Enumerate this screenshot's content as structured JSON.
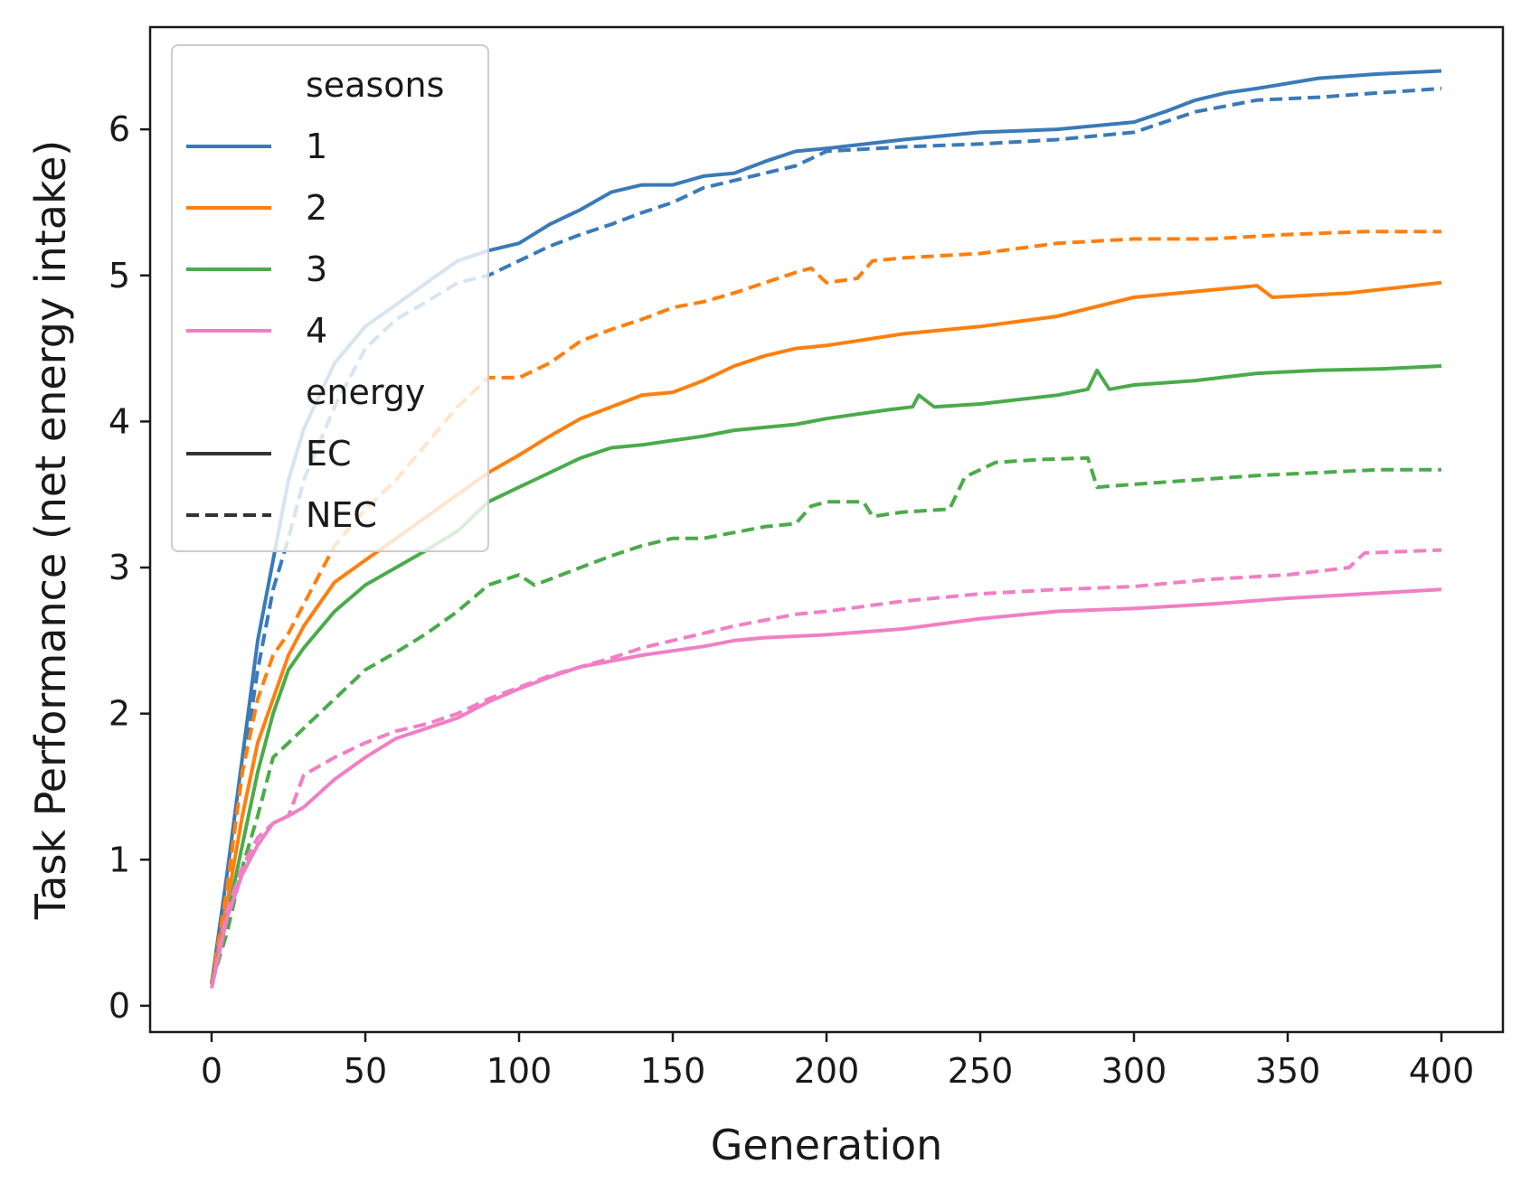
{
  "chart_data": {
    "type": "line",
    "title": "",
    "xlabel": "Generation",
    "ylabel": "Task Performance (net energy intake)",
    "xlim": [
      -20,
      420
    ],
    "ylim": [
      -0.18,
      6.7
    ],
    "xticks": [
      0,
      50,
      100,
      150,
      200,
      250,
      300,
      350,
      400
    ],
    "yticks": [
      0,
      1,
      2,
      3,
      4,
      5,
      6
    ],
    "grid": false,
    "legend": {
      "placement": "upper-left",
      "hue_title": "seasons",
      "style_title": "energy",
      "hue_entries": [
        {
          "label": "1",
          "color": "#3a7ab8"
        },
        {
          "label": "2",
          "color": "#ff7f0e"
        },
        {
          "label": "3",
          "color": "#4aab4a"
        },
        {
          "label": "4",
          "color": "#f07fc4"
        }
      ],
      "style_entries": [
        {
          "label": "EC",
          "dash": "solid"
        },
        {
          "label": "NEC",
          "dash": "dashed"
        }
      ]
    },
    "series": [
      {
        "seasons": "1",
        "energy": "EC",
        "color": "#3a7ab8",
        "dash": "solid",
        "points": [
          [
            0,
            0.15
          ],
          [
            5,
            0.9
          ],
          [
            10,
            1.7
          ],
          [
            15,
            2.5
          ],
          [
            20,
            3.05
          ],
          [
            25,
            3.6
          ],
          [
            30,
            3.95
          ],
          [
            40,
            4.4
          ],
          [
            50,
            4.65
          ],
          [
            60,
            4.8
          ],
          [
            70,
            4.95
          ],
          [
            80,
            5.1
          ],
          [
            90,
            5.17
          ],
          [
            100,
            5.22
          ],
          [
            110,
            5.35
          ],
          [
            120,
            5.45
          ],
          [
            130,
            5.57
          ],
          [
            140,
            5.62
          ],
          [
            150,
            5.62
          ],
          [
            160,
            5.68
          ],
          [
            170,
            5.7
          ],
          [
            180,
            5.78
          ],
          [
            190,
            5.85
          ],
          [
            200,
            5.87
          ],
          [
            225,
            5.93
          ],
          [
            250,
            5.98
          ],
          [
            275,
            6.0
          ],
          [
            300,
            6.05
          ],
          [
            310,
            6.12
          ],
          [
            320,
            6.2
          ],
          [
            330,
            6.25
          ],
          [
            340,
            6.28
          ],
          [
            360,
            6.35
          ],
          [
            380,
            6.38
          ],
          [
            400,
            6.4
          ]
        ]
      },
      {
        "seasons": "1",
        "energy": "NEC",
        "color": "#3a7ab8",
        "dash": "dashed",
        "points": [
          [
            0,
            0.15
          ],
          [
            5,
            0.85
          ],
          [
            10,
            1.6
          ],
          [
            15,
            2.3
          ],
          [
            20,
            2.85
          ],
          [
            25,
            3.2
          ],
          [
            30,
            3.6
          ],
          [
            40,
            4.1
          ],
          [
            50,
            4.5
          ],
          [
            60,
            4.7
          ],
          [
            70,
            4.82
          ],
          [
            80,
            4.95
          ],
          [
            90,
            5.0
          ],
          [
            100,
            5.1
          ],
          [
            110,
            5.2
          ],
          [
            120,
            5.28
          ],
          [
            130,
            5.35
          ],
          [
            140,
            5.43
          ],
          [
            150,
            5.5
          ],
          [
            160,
            5.6
          ],
          [
            170,
            5.65
          ],
          [
            180,
            5.7
          ],
          [
            190,
            5.75
          ],
          [
            200,
            5.85
          ],
          [
            225,
            5.88
          ],
          [
            250,
            5.9
          ],
          [
            275,
            5.93
          ],
          [
            300,
            5.98
          ],
          [
            320,
            6.12
          ],
          [
            340,
            6.2
          ],
          [
            360,
            6.22
          ],
          [
            380,
            6.25
          ],
          [
            400,
            6.28
          ]
        ]
      },
      {
        "seasons": "2",
        "energy": "EC",
        "color": "#ff7f0e",
        "dash": "solid",
        "points": [
          [
            0,
            0.15
          ],
          [
            5,
            0.7
          ],
          [
            10,
            1.3
          ],
          [
            15,
            1.8
          ],
          [
            20,
            2.1
          ],
          [
            25,
            2.4
          ],
          [
            30,
            2.6
          ],
          [
            40,
            2.9
          ],
          [
            50,
            3.05
          ],
          [
            60,
            3.2
          ],
          [
            70,
            3.35
          ],
          [
            80,
            3.5
          ],
          [
            90,
            3.65
          ],
          [
            100,
            3.77
          ],
          [
            110,
            3.9
          ],
          [
            120,
            4.02
          ],
          [
            130,
            4.1
          ],
          [
            140,
            4.18
          ],
          [
            150,
            4.2
          ],
          [
            160,
            4.28
          ],
          [
            170,
            4.38
          ],
          [
            180,
            4.45
          ],
          [
            190,
            4.5
          ],
          [
            200,
            4.52
          ],
          [
            225,
            4.6
          ],
          [
            250,
            4.65
          ],
          [
            275,
            4.72
          ],
          [
            300,
            4.85
          ],
          [
            325,
            4.9
          ],
          [
            340,
            4.93
          ],
          [
            345,
            4.85
          ],
          [
            370,
            4.88
          ],
          [
            400,
            4.95
          ]
        ]
      },
      {
        "seasons": "2",
        "energy": "NEC",
        "color": "#ff7f0e",
        "dash": "dashed",
        "points": [
          [
            0,
            0.15
          ],
          [
            5,
            0.8
          ],
          [
            10,
            1.6
          ],
          [
            15,
            2.1
          ],
          [
            20,
            2.4
          ],
          [
            25,
            2.55
          ],
          [
            30,
            2.75
          ],
          [
            40,
            3.15
          ],
          [
            50,
            3.4
          ],
          [
            60,
            3.6
          ],
          [
            70,
            3.85
          ],
          [
            80,
            4.1
          ],
          [
            90,
            4.3
          ],
          [
            100,
            4.3
          ],
          [
            105,
            4.35
          ],
          [
            110,
            4.4
          ],
          [
            120,
            4.55
          ],
          [
            130,
            4.63
          ],
          [
            140,
            4.7
          ],
          [
            150,
            4.78
          ],
          [
            160,
            4.82
          ],
          [
            170,
            4.88
          ],
          [
            180,
            4.95
          ],
          [
            190,
            5.02
          ],
          [
            195,
            5.05
          ],
          [
            200,
            4.95
          ],
          [
            210,
            4.98
          ],
          [
            215,
            5.1
          ],
          [
            225,
            5.12
          ],
          [
            250,
            5.15
          ],
          [
            275,
            5.22
          ],
          [
            300,
            5.25
          ],
          [
            325,
            5.25
          ],
          [
            350,
            5.28
          ],
          [
            375,
            5.3
          ],
          [
            400,
            5.3
          ]
        ]
      },
      {
        "seasons": "3",
        "energy": "EC",
        "color": "#4aab4a",
        "dash": "solid",
        "points": [
          [
            0,
            0.15
          ],
          [
            5,
            0.6
          ],
          [
            10,
            1.1
          ],
          [
            15,
            1.6
          ],
          [
            20,
            2.0
          ],
          [
            25,
            2.3
          ],
          [
            30,
            2.45
          ],
          [
            40,
            2.7
          ],
          [
            50,
            2.88
          ],
          [
            60,
            3.0
          ],
          [
            70,
            3.12
          ],
          [
            80,
            3.25
          ],
          [
            90,
            3.45
          ],
          [
            100,
            3.55
          ],
          [
            110,
            3.65
          ],
          [
            120,
            3.75
          ],
          [
            130,
            3.82
          ],
          [
            140,
            3.84
          ],
          [
            150,
            3.87
          ],
          [
            160,
            3.9
          ],
          [
            170,
            3.94
          ],
          [
            180,
            3.96
          ],
          [
            190,
            3.98
          ],
          [
            200,
            4.02
          ],
          [
            210,
            4.05
          ],
          [
            220,
            4.08
          ],
          [
            228,
            4.1
          ],
          [
            230,
            4.18
          ],
          [
            235,
            4.1
          ],
          [
            250,
            4.12
          ],
          [
            275,
            4.18
          ],
          [
            285,
            4.22
          ],
          [
            288,
            4.35
          ],
          [
            292,
            4.22
          ],
          [
            300,
            4.25
          ],
          [
            320,
            4.28
          ],
          [
            340,
            4.33
          ],
          [
            360,
            4.35
          ],
          [
            380,
            4.36
          ],
          [
            400,
            4.38
          ]
        ]
      },
      {
        "seasons": "3",
        "energy": "NEC",
        "color": "#4aab4a",
        "dash": "dashed",
        "points": [
          [
            0,
            0.15
          ],
          [
            5,
            0.5
          ],
          [
            10,
            0.95
          ],
          [
            15,
            1.3
          ],
          [
            20,
            1.7
          ],
          [
            25,
            1.8
          ],
          [
            30,
            1.9
          ],
          [
            40,
            2.1
          ],
          [
            50,
            2.3
          ],
          [
            60,
            2.42
          ],
          [
            70,
            2.55
          ],
          [
            80,
            2.7
          ],
          [
            90,
            2.88
          ],
          [
            100,
            2.95
          ],
          [
            105,
            2.88
          ],
          [
            110,
            2.92
          ],
          [
            120,
            3.0
          ],
          [
            130,
            3.08
          ],
          [
            140,
            3.15
          ],
          [
            150,
            3.2
          ],
          [
            160,
            3.2
          ],
          [
            170,
            3.24
          ],
          [
            180,
            3.28
          ],
          [
            190,
            3.3
          ],
          [
            195,
            3.42
          ],
          [
            200,
            3.45
          ],
          [
            212,
            3.45
          ],
          [
            215,
            3.35
          ],
          [
            225,
            3.38
          ],
          [
            240,
            3.4
          ],
          [
            245,
            3.62
          ],
          [
            255,
            3.72
          ],
          [
            270,
            3.74
          ],
          [
            285,
            3.75
          ],
          [
            288,
            3.55
          ],
          [
            300,
            3.57
          ],
          [
            320,
            3.6
          ],
          [
            340,
            3.63
          ],
          [
            360,
            3.65
          ],
          [
            380,
            3.67
          ],
          [
            400,
            3.67
          ]
        ]
      },
      {
        "seasons": "4",
        "energy": "EC",
        "color": "#f07fc4",
        "dash": "solid",
        "points": [
          [
            0,
            0.12
          ],
          [
            5,
            0.6
          ],
          [
            10,
            0.9
          ],
          [
            15,
            1.1
          ],
          [
            20,
            1.25
          ],
          [
            25,
            1.3
          ],
          [
            30,
            1.36
          ],
          [
            40,
            1.55
          ],
          [
            50,
            1.7
          ],
          [
            60,
            1.83
          ],
          [
            70,
            1.9
          ],
          [
            80,
            1.97
          ],
          [
            90,
            2.08
          ],
          [
            100,
            2.17
          ],
          [
            110,
            2.25
          ],
          [
            120,
            2.32
          ],
          [
            130,
            2.36
          ],
          [
            140,
            2.4
          ],
          [
            150,
            2.43
          ],
          [
            160,
            2.46
          ],
          [
            170,
            2.5
          ],
          [
            180,
            2.52
          ],
          [
            190,
            2.53
          ],
          [
            200,
            2.54
          ],
          [
            225,
            2.58
          ],
          [
            250,
            2.65
          ],
          [
            275,
            2.7
          ],
          [
            300,
            2.72
          ],
          [
            325,
            2.75
          ],
          [
            350,
            2.79
          ],
          [
            375,
            2.82
          ],
          [
            400,
            2.85
          ]
        ]
      },
      {
        "seasons": "4",
        "energy": "NEC",
        "color": "#f07fc4",
        "dash": "dashed",
        "points": [
          [
            0,
            0.12
          ],
          [
            5,
            0.65
          ],
          [
            10,
            0.95
          ],
          [
            15,
            1.15
          ],
          [
            20,
            1.25
          ],
          [
            25,
            1.3
          ],
          [
            30,
            1.58
          ],
          [
            40,
            1.7
          ],
          [
            50,
            1.8
          ],
          [
            60,
            1.88
          ],
          [
            70,
            1.93
          ],
          [
            80,
            2.0
          ],
          [
            90,
            2.1
          ],
          [
            100,
            2.18
          ],
          [
            110,
            2.26
          ],
          [
            120,
            2.32
          ],
          [
            130,
            2.38
          ],
          [
            140,
            2.45
          ],
          [
            150,
            2.5
          ],
          [
            160,
            2.55
          ],
          [
            170,
            2.6
          ],
          [
            180,
            2.64
          ],
          [
            190,
            2.68
          ],
          [
            200,
            2.7
          ],
          [
            225,
            2.77
          ],
          [
            250,
            2.82
          ],
          [
            275,
            2.85
          ],
          [
            300,
            2.87
          ],
          [
            325,
            2.92
          ],
          [
            350,
            2.95
          ],
          [
            370,
            3.0
          ],
          [
            375,
            3.1
          ],
          [
            400,
            3.12
          ]
        ]
      }
    ]
  }
}
